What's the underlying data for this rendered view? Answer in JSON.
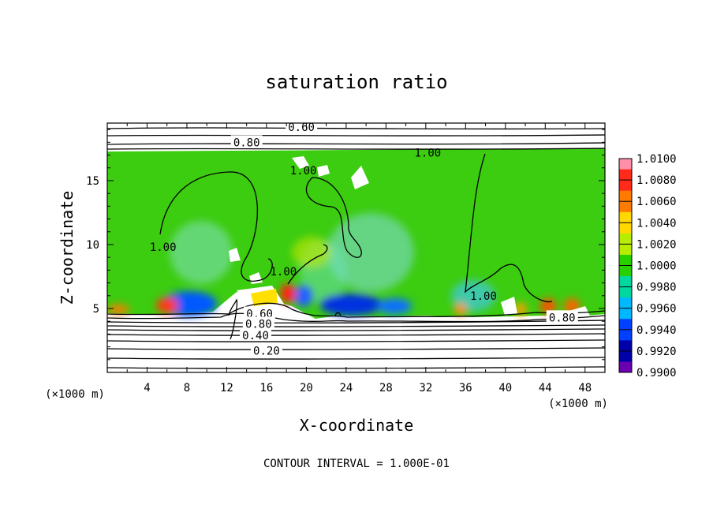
{
  "chart_data": {
    "type": "heatmap",
    "title": "saturation ratio",
    "xlabel": "X-coordinate",
    "ylabel": "Z-coordinate",
    "x_unit_left": "(×1000 m)",
    "x_unit_right": "(×1000 m)",
    "footer": "CONTOUR INTERVAL = 1.000E-01",
    "xlim": [
      0,
      50
    ],
    "ylim": [
      0,
      19.5
    ],
    "x_ticks": [
      4,
      8,
      12,
      16,
      20,
      24,
      28,
      32,
      36,
      40,
      44,
      48
    ],
    "y_ticks": [
      5,
      10,
      15
    ],
    "grid": false,
    "colorbar": {
      "position": "right",
      "labels": [
        "1.0100",
        "1.0080",
        "1.0060",
        "1.0040",
        "1.0020",
        "1.0000",
        "0.9980",
        "0.9960",
        "0.9940",
        "0.9920",
        "0.9900"
      ],
      "colors": [
        "#ff8fa8",
        "#ff2a1a",
        "#ff7a00",
        "#ffd800",
        "#b8ec00",
        "#28d000",
        "#00d8a0",
        "#00b8ff",
        "#0040ff",
        "#0000a8",
        "#6a00b0"
      ]
    },
    "contour_labels": [
      {
        "text": "0.60",
        "x": 19.5,
        "y": 19.2
      },
      {
        "text": "0.80",
        "x": 14.0,
        "y": 18.0
      },
      {
        "text": "1.00",
        "x": 32.2,
        "y": 17.2
      },
      {
        "text": "1.00",
        "x": 19.7,
        "y": 15.8
      },
      {
        "text": "1.00",
        "x": 5.6,
        "y": 9.8
      },
      {
        "text": "1.00",
        "x": 17.7,
        "y": 7.9
      },
      {
        "text": "1.00",
        "x": 37.8,
        "y": 6.0
      },
      {
        "text": "0.80",
        "x": 45.7,
        "y": 4.3
      },
      {
        "text": "0.60",
        "x": 15.3,
        "y": 4.6
      },
      {
        "text": "0.80",
        "x": 15.2,
        "y": 3.8
      },
      {
        "text": "0.40",
        "x": 14.9,
        "y": 2.9
      },
      {
        "text": "0.20",
        "x": 16.0,
        "y": 1.7
      }
    ],
    "contour_levels": [
      0.2,
      0.4,
      0.6,
      0.8,
      1.0
    ]
  }
}
